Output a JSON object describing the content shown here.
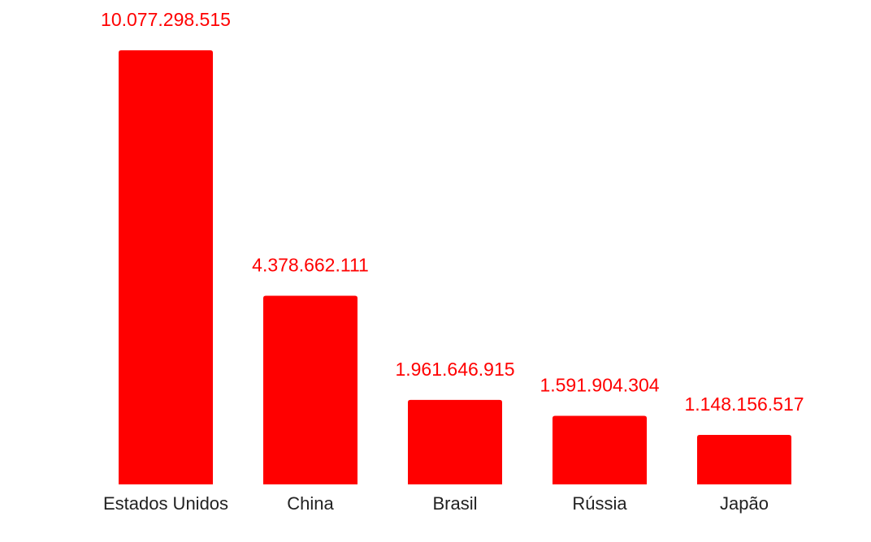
{
  "chart_data": {
    "type": "bar",
    "title": "",
    "xlabel": "",
    "ylabel": "",
    "categories": [
      "Estados Unidos",
      "China",
      "Brasil",
      "Rússia",
      "Japão"
    ],
    "values": [
      10077298515,
      4378662111,
      1961646915,
      1591904304,
      1148156517
    ],
    "value_labels": [
      "10.077.298.515",
      "4.378.662.111",
      "1.961.646.915",
      "1.591.904.304",
      "1.148.156.517"
    ],
    "ylim": [
      0,
      10077298515
    ],
    "grid": false,
    "legend": "none",
    "colors": {
      "bar": "#ff0000",
      "value_label": "#ff0000",
      "category_label": "#222222"
    }
  }
}
